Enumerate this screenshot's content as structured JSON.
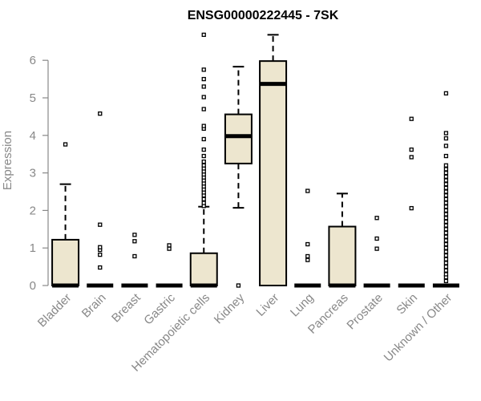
{
  "chart_data": {
    "type": "box",
    "title": "ENSG00000222445 - 7SK",
    "xlabel": "",
    "ylabel": "Expression",
    "ylim": [
      0,
      6.7
    ],
    "yticks": [
      0,
      1,
      2,
      3,
      4,
      5,
      6
    ],
    "box_fill": "#ede6cf",
    "axis_color": "#888888",
    "categories": [
      "Bladder",
      "Brain",
      "Breast",
      "Gastric",
      "Hematopoietic cells",
      "Kidney",
      "Liver",
      "Lung",
      "Pancreas",
      "Prostate",
      "Skin",
      "Unknown / Other"
    ],
    "boxes": [
      {
        "category": "Bladder",
        "min": 0,
        "q1": 0,
        "median": 0,
        "q3": 1.22,
        "max": 2.7,
        "outliers": [
          3.76
        ]
      },
      {
        "category": "Brain",
        "min": 0,
        "q1": 0,
        "median": 0,
        "q3": 0,
        "max": 0,
        "outliers": [
          0.48,
          0.82,
          0.95,
          1.02,
          1.62,
          4.58
        ]
      },
      {
        "category": "Breast",
        "min": 0,
        "q1": 0,
        "median": 0,
        "q3": 0,
        "max": 0,
        "outliers": [
          0.78,
          1.18,
          1.35
        ]
      },
      {
        "category": "Gastric",
        "min": 0,
        "q1": 0,
        "median": 0,
        "q3": 0,
        "max": 0,
        "outliers": [
          0.98,
          1.07
        ]
      },
      {
        "category": "Hematopoietic cells",
        "min": 0,
        "q1": 0,
        "median": 0,
        "q3": 0.86,
        "max": 2.1,
        "outliers": [
          2.12,
          2.2,
          2.3,
          2.4,
          2.48,
          2.56,
          2.64,
          2.72,
          2.8,
          2.88,
          2.96,
          3.04,
          3.12,
          3.2,
          3.3,
          3.45,
          3.62,
          3.9,
          4.18,
          4.25,
          4.7,
          5.02,
          5.3,
          5.5,
          5.75,
          6.68
        ]
      },
      {
        "category": "Kidney",
        "min": 2.07,
        "q1": 3.25,
        "median": 3.98,
        "q3": 4.56,
        "max": 5.83,
        "outliers": [
          0
        ]
      },
      {
        "category": "Liver",
        "min": 0,
        "q1": 0,
        "median": 5.37,
        "q3": 5.98,
        "max": 6.68,
        "outliers": []
      },
      {
        "category": "Lung",
        "min": 0,
        "q1": 0,
        "median": 0,
        "q3": 0,
        "max": 0,
        "outliers": [
          0.68,
          0.78,
          1.1,
          2.52
        ]
      },
      {
        "category": "Pancreas",
        "min": 0,
        "q1": 0,
        "median": 0,
        "q3": 1.57,
        "max": 2.45,
        "outliers": []
      },
      {
        "category": "Prostate",
        "min": 0,
        "q1": 0,
        "median": 0,
        "q3": 0,
        "max": 0,
        "outliers": [
          0.98,
          1.25,
          1.8
        ]
      },
      {
        "category": "Skin",
        "min": 0,
        "q1": 0,
        "median": 0,
        "q3": 0,
        "max": 0,
        "outliers": [
          2.06,
          3.42,
          3.62,
          4.44
        ]
      },
      {
        "category": "Unknown / Other",
        "min": 0,
        "q1": 0,
        "median": 0,
        "q3": 0,
        "max": 0,
        "outliers": [
          0.12,
          0.22,
          0.3,
          0.4,
          0.5,
          0.6,
          0.7,
          0.8,
          0.9,
          1.0,
          1.1,
          1.2,
          1.3,
          1.4,
          1.5,
          1.6,
          1.7,
          1.8,
          1.9,
          2.0,
          2.1,
          2.2,
          2.3,
          2.4,
          2.5,
          2.6,
          2.7,
          2.8,
          2.9,
          3.0,
          3.1,
          3.2,
          3.45,
          3.72,
          3.92,
          4.06,
          5.12
        ]
      }
    ]
  }
}
